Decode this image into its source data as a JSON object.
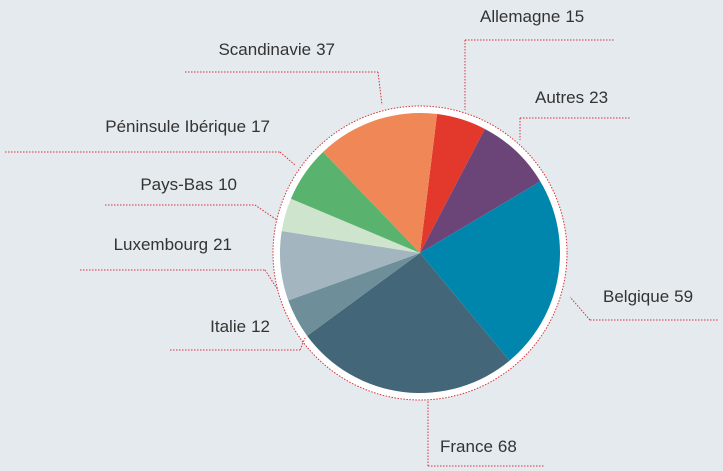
{
  "chart_data": {
    "type": "pie",
    "categories": [
      "Allemagne",
      "Autres",
      "Belgique",
      "France",
      "Italie",
      "Luxembourg",
      "Pays-Bas",
      "Péninsule Ibérique",
      "Scandinavie"
    ],
    "values": [
      15,
      23,
      59,
      68,
      12,
      21,
      10,
      17,
      37
    ],
    "colors": [
      "#e3382c",
      "#6b4478",
      "#0086ad",
      "#436778",
      "#6e8f9a",
      "#a3b6c0",
      "#cfe4cc",
      "#5ab26f",
      "#ef8756"
    ]
  }
}
